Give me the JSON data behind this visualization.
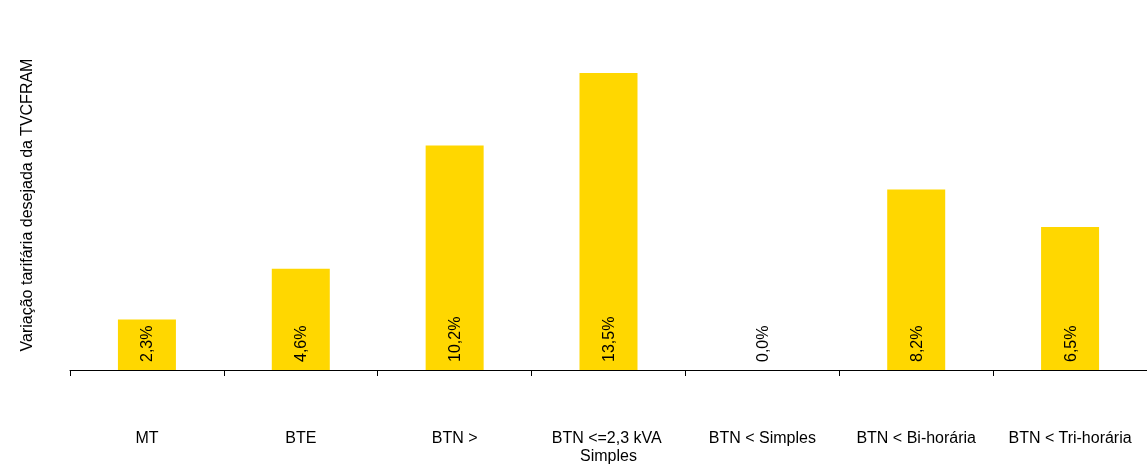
{
  "chart_data": {
    "type": "bar",
    "ylabel": "Variação tarifária desejada da TVCFRAM",
    "categories": [
      "MT",
      "BTE",
      "BTN >",
      "BTN <=2,3 kVA Simples",
      "BTN < Simples",
      "BTN < Bi-horária",
      "BTN < Tri-horária"
    ],
    "values": [
      2.3,
      4.6,
      10.2,
      13.5,
      0.0,
      8.2,
      6.5
    ],
    "value_labels": [
      "2,3%",
      "4,6%",
      "10,2%",
      "13,5%",
      "0,0%",
      "8,2%",
      "6,5%"
    ],
    "color": "#ffd700",
    "grid": false
  }
}
